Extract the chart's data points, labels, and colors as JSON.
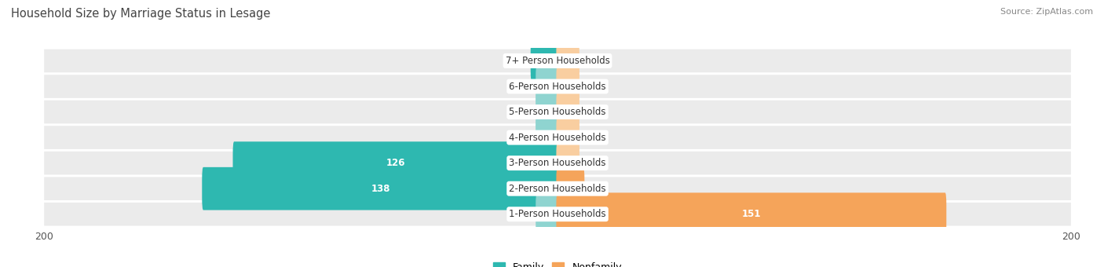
{
  "title": "Household Size by Marriage Status in Lesage",
  "source": "Source: ZipAtlas.com",
  "categories": [
    "7+ Person Households",
    "6-Person Households",
    "5-Person Households",
    "4-Person Households",
    "3-Person Households",
    "2-Person Households",
    "1-Person Households"
  ],
  "family": [
    10,
    0,
    0,
    0,
    126,
    138,
    0
  ],
  "nonfamily": [
    0,
    0,
    0,
    0,
    0,
    10,
    151
  ],
  "family_color": "#2eb8b0",
  "family_color_light": "#8fd4d0",
  "nonfamily_color": "#f5a45a",
  "nonfamily_color_light": "#f9cea0",
  "row_bg_color": "#ebebeb",
  "xlim": 200,
  "min_bar_display": 8,
  "title_fontsize": 10.5,
  "label_fontsize": 8.5,
  "tick_fontsize": 9,
  "source_fontsize": 8,
  "background_color": "#ffffff"
}
